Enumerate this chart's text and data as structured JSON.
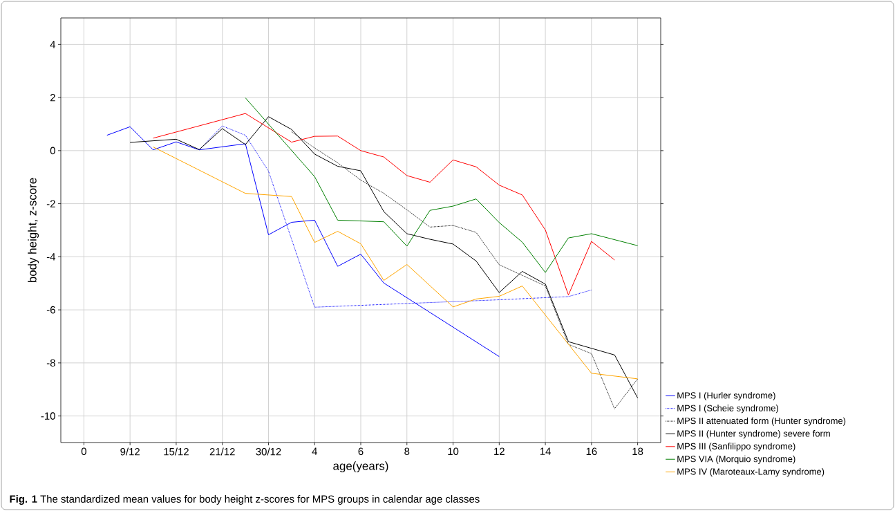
{
  "chart_data": {
    "type": "line",
    "xlabel": "age(years)",
    "ylabel": "body height, z-score",
    "categories": [
      "0",
      null,
      "9/12",
      null,
      "15/12",
      null,
      "21/12",
      null,
      "30/12",
      null,
      "4",
      null,
      "6",
      null,
      "8",
      null,
      "10",
      null,
      "12",
      null,
      "14",
      null,
      "16",
      null,
      "18"
    ],
    "series": [
      {
        "name": "MPS I (Hurler syndrome)",
        "color": "#0000ff",
        "line_style": "solid",
        "values": [
          null,
          0.58,
          0.9,
          0.03,
          0.33,
          0.03,
          null,
          0.26,
          -3.17,
          -2.7,
          -2.62,
          -4.36,
          -3.9,
          -4.99,
          null,
          null,
          null,
          null,
          -7.76,
          null,
          null,
          null,
          null,
          null,
          null
        ]
      },
      {
        "name": "MPS I (Scheie syndrome)",
        "color": "#0000ff",
        "line_style": "dotted",
        "values": [
          null,
          null,
          null,
          null,
          null,
          0.03,
          0.93,
          0.58,
          -0.77,
          null,
          -5.9,
          null,
          null,
          null,
          null,
          null,
          null,
          null,
          -5.62,
          null,
          null,
          -5.5,
          -5.25,
          null,
          null
        ]
      },
      {
        "name": "MPS II attenuated form (Hunter syndrome)",
        "color": "#000000",
        "line_style": "dotted",
        "values": [
          null,
          null,
          null,
          null,
          null,
          null,
          null,
          null,
          null,
          0.71,
          0.1,
          -0.46,
          -1.11,
          -1.61,
          -2.23,
          -2.88,
          -2.82,
          -3.08,
          -4.3,
          -4.7,
          -5.1,
          -7.3,
          -7.65,
          -9.73,
          -8.6
        ]
      },
      {
        "name": "MPS II (Hunter syndrome) severe form",
        "color": "#000000",
        "line_style": "solid",
        "values": [
          null,
          null,
          0.31,
          null,
          0.43,
          0.04,
          0.83,
          0.23,
          1.28,
          0.8,
          -0.13,
          -0.59,
          -0.76,
          -2.3,
          -3.13,
          -3.34,
          -3.52,
          -4.16,
          -5.35,
          -4.55,
          -5.03,
          -7.2,
          -7.45,
          -7.7,
          -9.32
        ]
      },
      {
        "name": "MPS III (Sanfilippo syndrome)",
        "color": "#ff0000",
        "line_style": "solid",
        "values": [
          null,
          null,
          null,
          0.47,
          null,
          null,
          null,
          1.4,
          null,
          0.32,
          0.54,
          0.55,
          0.0,
          -0.24,
          -0.94,
          -1.19,
          -0.35,
          -0.61,
          -1.3,
          -1.67,
          -2.99,
          -5.44,
          -3.42,
          -4.12,
          null
        ]
      },
      {
        "name": "MPS VIA (Morquio syndrome)",
        "color": "#008000",
        "line_style": "solid",
        "values": [
          null,
          null,
          null,
          null,
          null,
          null,
          null,
          1.99,
          null,
          null,
          -0.98,
          -2.62,
          -2.65,
          -2.68,
          -3.6,
          -2.25,
          -2.09,
          -1.82,
          -2.71,
          -3.45,
          -4.59,
          -3.29,
          -3.13,
          null,
          -3.58
        ]
      },
      {
        "name": "MPS IV (Maroteaux-Lamy syndrome)",
        "color": "#ffa500",
        "line_style": "solid",
        "values": [
          null,
          null,
          null,
          0.14,
          null,
          null,
          null,
          -1.61,
          null,
          -1.73,
          -3.46,
          -3.04,
          -3.51,
          -4.89,
          -4.29,
          null,
          -5.89,
          -5.59,
          -5.49,
          -5.1,
          null,
          null,
          -8.39,
          null,
          -8.6
        ]
      }
    ],
    "ylim": [
      -11,
      5
    ],
    "yticks": [
      -10,
      -8,
      -6,
      -4,
      -2,
      0,
      2,
      4
    ],
    "grid": true,
    "legend": "bottom right",
    "marker": "none",
    "annotations": [
      "**Fig. 1** The standardized mean values for body height z-scores for MPS groups in calendar age classes"
    ]
  }
}
